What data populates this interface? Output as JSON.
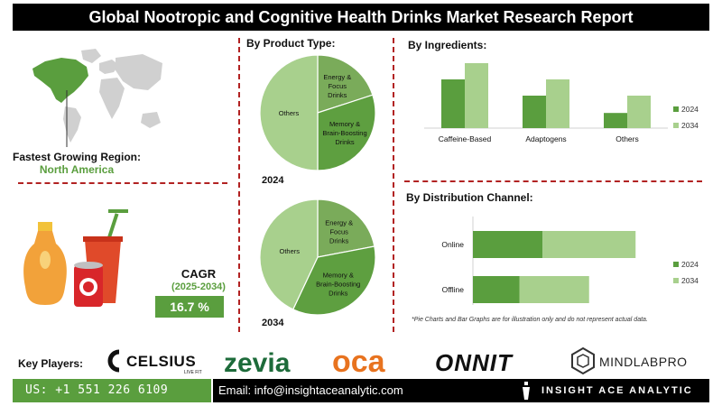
{
  "title": "Global Nootropic and Cognitive Health Drinks Market Research Report",
  "region": {
    "label": "Fastest Growing Region:",
    "value": "North America"
  },
  "cagr": {
    "label": "CAGR",
    "years": "(2025-2034)",
    "value": "16.7 %"
  },
  "note": "*Pie Charts and Bar Graphs are for illustration only and do not represent actual data.",
  "key_players": {
    "label": "Key Players:",
    "logos": [
      "CELSIUS",
      "LIVE FIT",
      "zevia",
      "oca",
      "ONNIT",
      "MINDLABPRO"
    ]
  },
  "contact": {
    "phone": "US: +1 551 226 6109",
    "email": "Email: info@insightaceanalytic.com",
    "brand": "INSIGHT ACE ANALYTIC"
  },
  "colors": {
    "dark_green": "#5a9e3e",
    "mid_green": "#7aab5a",
    "light_green": "#a8d08d",
    "divider": "#b22222"
  },
  "chart_data": [
    {
      "type": "pie",
      "title": "By Product Type:",
      "year_label": "2024",
      "categories": [
        "Energy & Focus Drinks",
        "Memory & Brain-Boosting Drinks",
        "Others"
      ],
      "values": [
        20,
        30,
        50
      ]
    },
    {
      "type": "pie",
      "year_label": "2034",
      "categories": [
        "Energy & Focus Drinks",
        "Memory & Brain-Boosting Drinks",
        "Others"
      ],
      "values": [
        22,
        35,
        43
      ]
    },
    {
      "type": "bar",
      "title": "By Ingredients:",
      "categories": [
        "Caffeine-Based",
        "Adaptogens",
        "Others"
      ],
      "series": [
        {
          "name": "2024",
          "values": [
            45,
            30,
            14
          ]
        },
        {
          "name": "2034",
          "values": [
            60,
            45,
            30
          ]
        }
      ],
      "ylim": [
        0,
        65
      ],
      "legend": "right"
    },
    {
      "type": "bar",
      "orientation": "horizontal",
      "stacked": true,
      "title": "By Distribution Channel:",
      "categories": [
        "Online",
        "Offline"
      ],
      "series": [
        {
          "name": "2024",
          "values": [
            30,
            20
          ]
        },
        {
          "name": "2034",
          "values": [
            40,
            30
          ]
        }
      ],
      "xlim": [
        0,
        80
      ],
      "legend": "right"
    }
  ]
}
